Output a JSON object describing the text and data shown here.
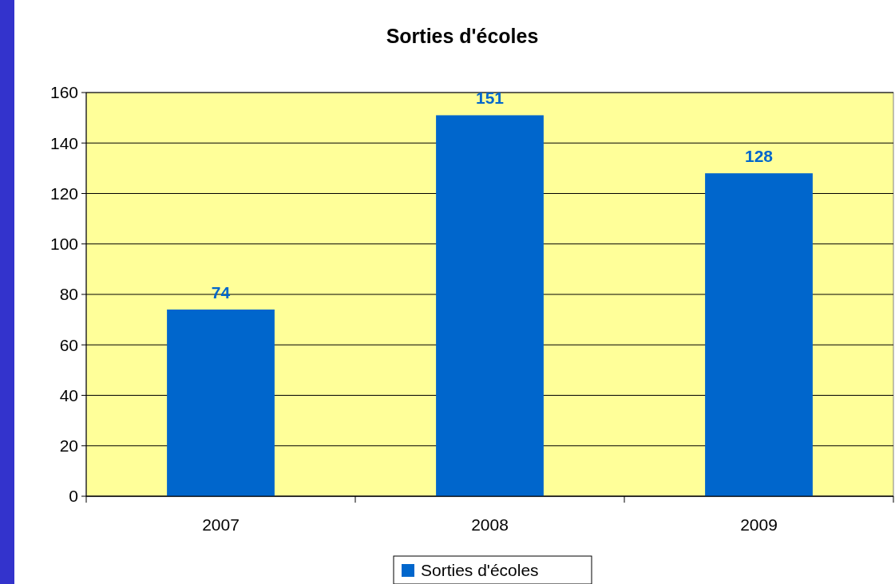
{
  "chart_data": {
    "type": "bar",
    "title": "Sorties d'écoles",
    "categories": [
      "2007",
      "2008",
      "2009"
    ],
    "series": [
      {
        "name": "Sorties d'écoles",
        "color": "#0066cc",
        "values": [
          74,
          151,
          128
        ]
      }
    ],
    "ylim": [
      0,
      160
    ],
    "yticks": [
      0,
      20,
      40,
      60,
      80,
      100,
      120,
      140,
      160
    ],
    "grid": "y",
    "legend": "bottom",
    "data_labels": true
  }
}
